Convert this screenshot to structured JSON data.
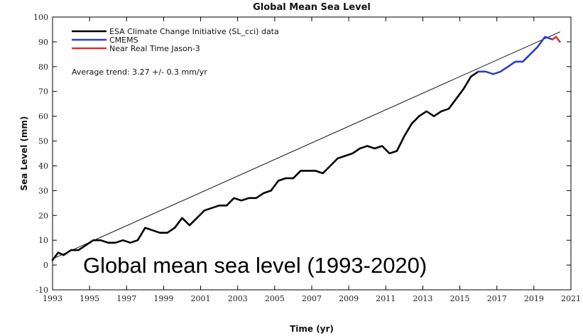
{
  "caption": "Global mean sea level (1993-2020)",
  "chart_data": {
    "type": "line",
    "title": "Global Mean Sea Level",
    "xlabel": "Time (yr)",
    "ylabel": "Sea Level (mm)",
    "xlim": [
      1993,
      2021
    ],
    "ylim": [
      -10,
      100
    ],
    "x_ticks": [
      1993,
      1995,
      1997,
      1999,
      2001,
      2003,
      2005,
      2007,
      2009,
      2011,
      2013,
      2015,
      2017,
      2019,
      2021
    ],
    "y_ticks": [
      -10,
      0,
      10,
      20,
      30,
      40,
      50,
      60,
      70,
      80,
      90,
      100
    ],
    "grid": false,
    "legend_position": "top-left",
    "annotation": "Average trend: 3.27 +/- 0.3 mm/yr",
    "series": [
      {
        "name": "ESA Climate Change Initiative (SL_cci) data",
        "color": "#000000",
        "x": [
          1993.0,
          1993.3,
          1993.6,
          1994.0,
          1994.4,
          1994.8,
          1995.2,
          1995.6,
          1996.0,
          1996.4,
          1996.8,
          1997.2,
          1997.6,
          1998.0,
          1998.4,
          1998.8,
          1999.2,
          1999.6,
          2000.0,
          2000.4,
          2000.8,
          2001.2,
          2001.6,
          2002.0,
          2002.4,
          2002.8,
          2003.2,
          2003.6,
          2004.0,
          2004.4,
          2004.8,
          2005.2,
          2005.6,
          2006.0,
          2006.4,
          2006.8,
          2007.2,
          2007.6,
          2008.0,
          2008.4,
          2008.8,
          2009.2,
          2009.6,
          2010.0,
          2010.4,
          2010.8,
          2011.2,
          2011.6,
          2012.0,
          2012.4,
          2012.8,
          2013.2,
          2013.6,
          2014.0,
          2014.4,
          2014.8,
          2015.2,
          2015.6,
          2016.0
        ],
        "values": [
          2,
          5,
          4,
          6,
          6,
          8,
          10,
          10,
          9,
          9,
          10,
          9,
          10,
          15,
          14,
          13,
          13,
          15,
          19,
          16,
          19,
          22,
          23,
          24,
          24,
          27,
          26,
          27,
          27,
          29,
          30,
          34,
          35,
          35,
          38,
          38,
          38,
          37,
          40,
          43,
          44,
          45,
          47,
          48,
          47,
          48,
          45,
          46,
          52,
          57,
          60,
          62,
          60,
          62,
          63,
          67,
          71,
          76,
          78
        ]
      },
      {
        "name": "CMEMS",
        "color": "#2b3fbf",
        "x": [
          2016.0,
          2016.4,
          2016.8,
          2017.2,
          2017.6,
          2018.0,
          2018.4,
          2018.8,
          2019.2,
          2019.6,
          2020.0
        ],
        "values": [
          78,
          78,
          77,
          78,
          80,
          82,
          82,
          85,
          88,
          92,
          91
        ]
      },
      {
        "name": "Near Real Time Jason-3",
        "color": "#e0302a",
        "x": [
          2020.0,
          2020.2,
          2020.4
        ],
        "values": [
          91,
          92,
          90
        ]
      },
      {
        "name": "Trend",
        "color": "#111111",
        "x": [
          1993,
          2020.4
        ],
        "values": [
          2.5,
          94
        ]
      }
    ]
  }
}
